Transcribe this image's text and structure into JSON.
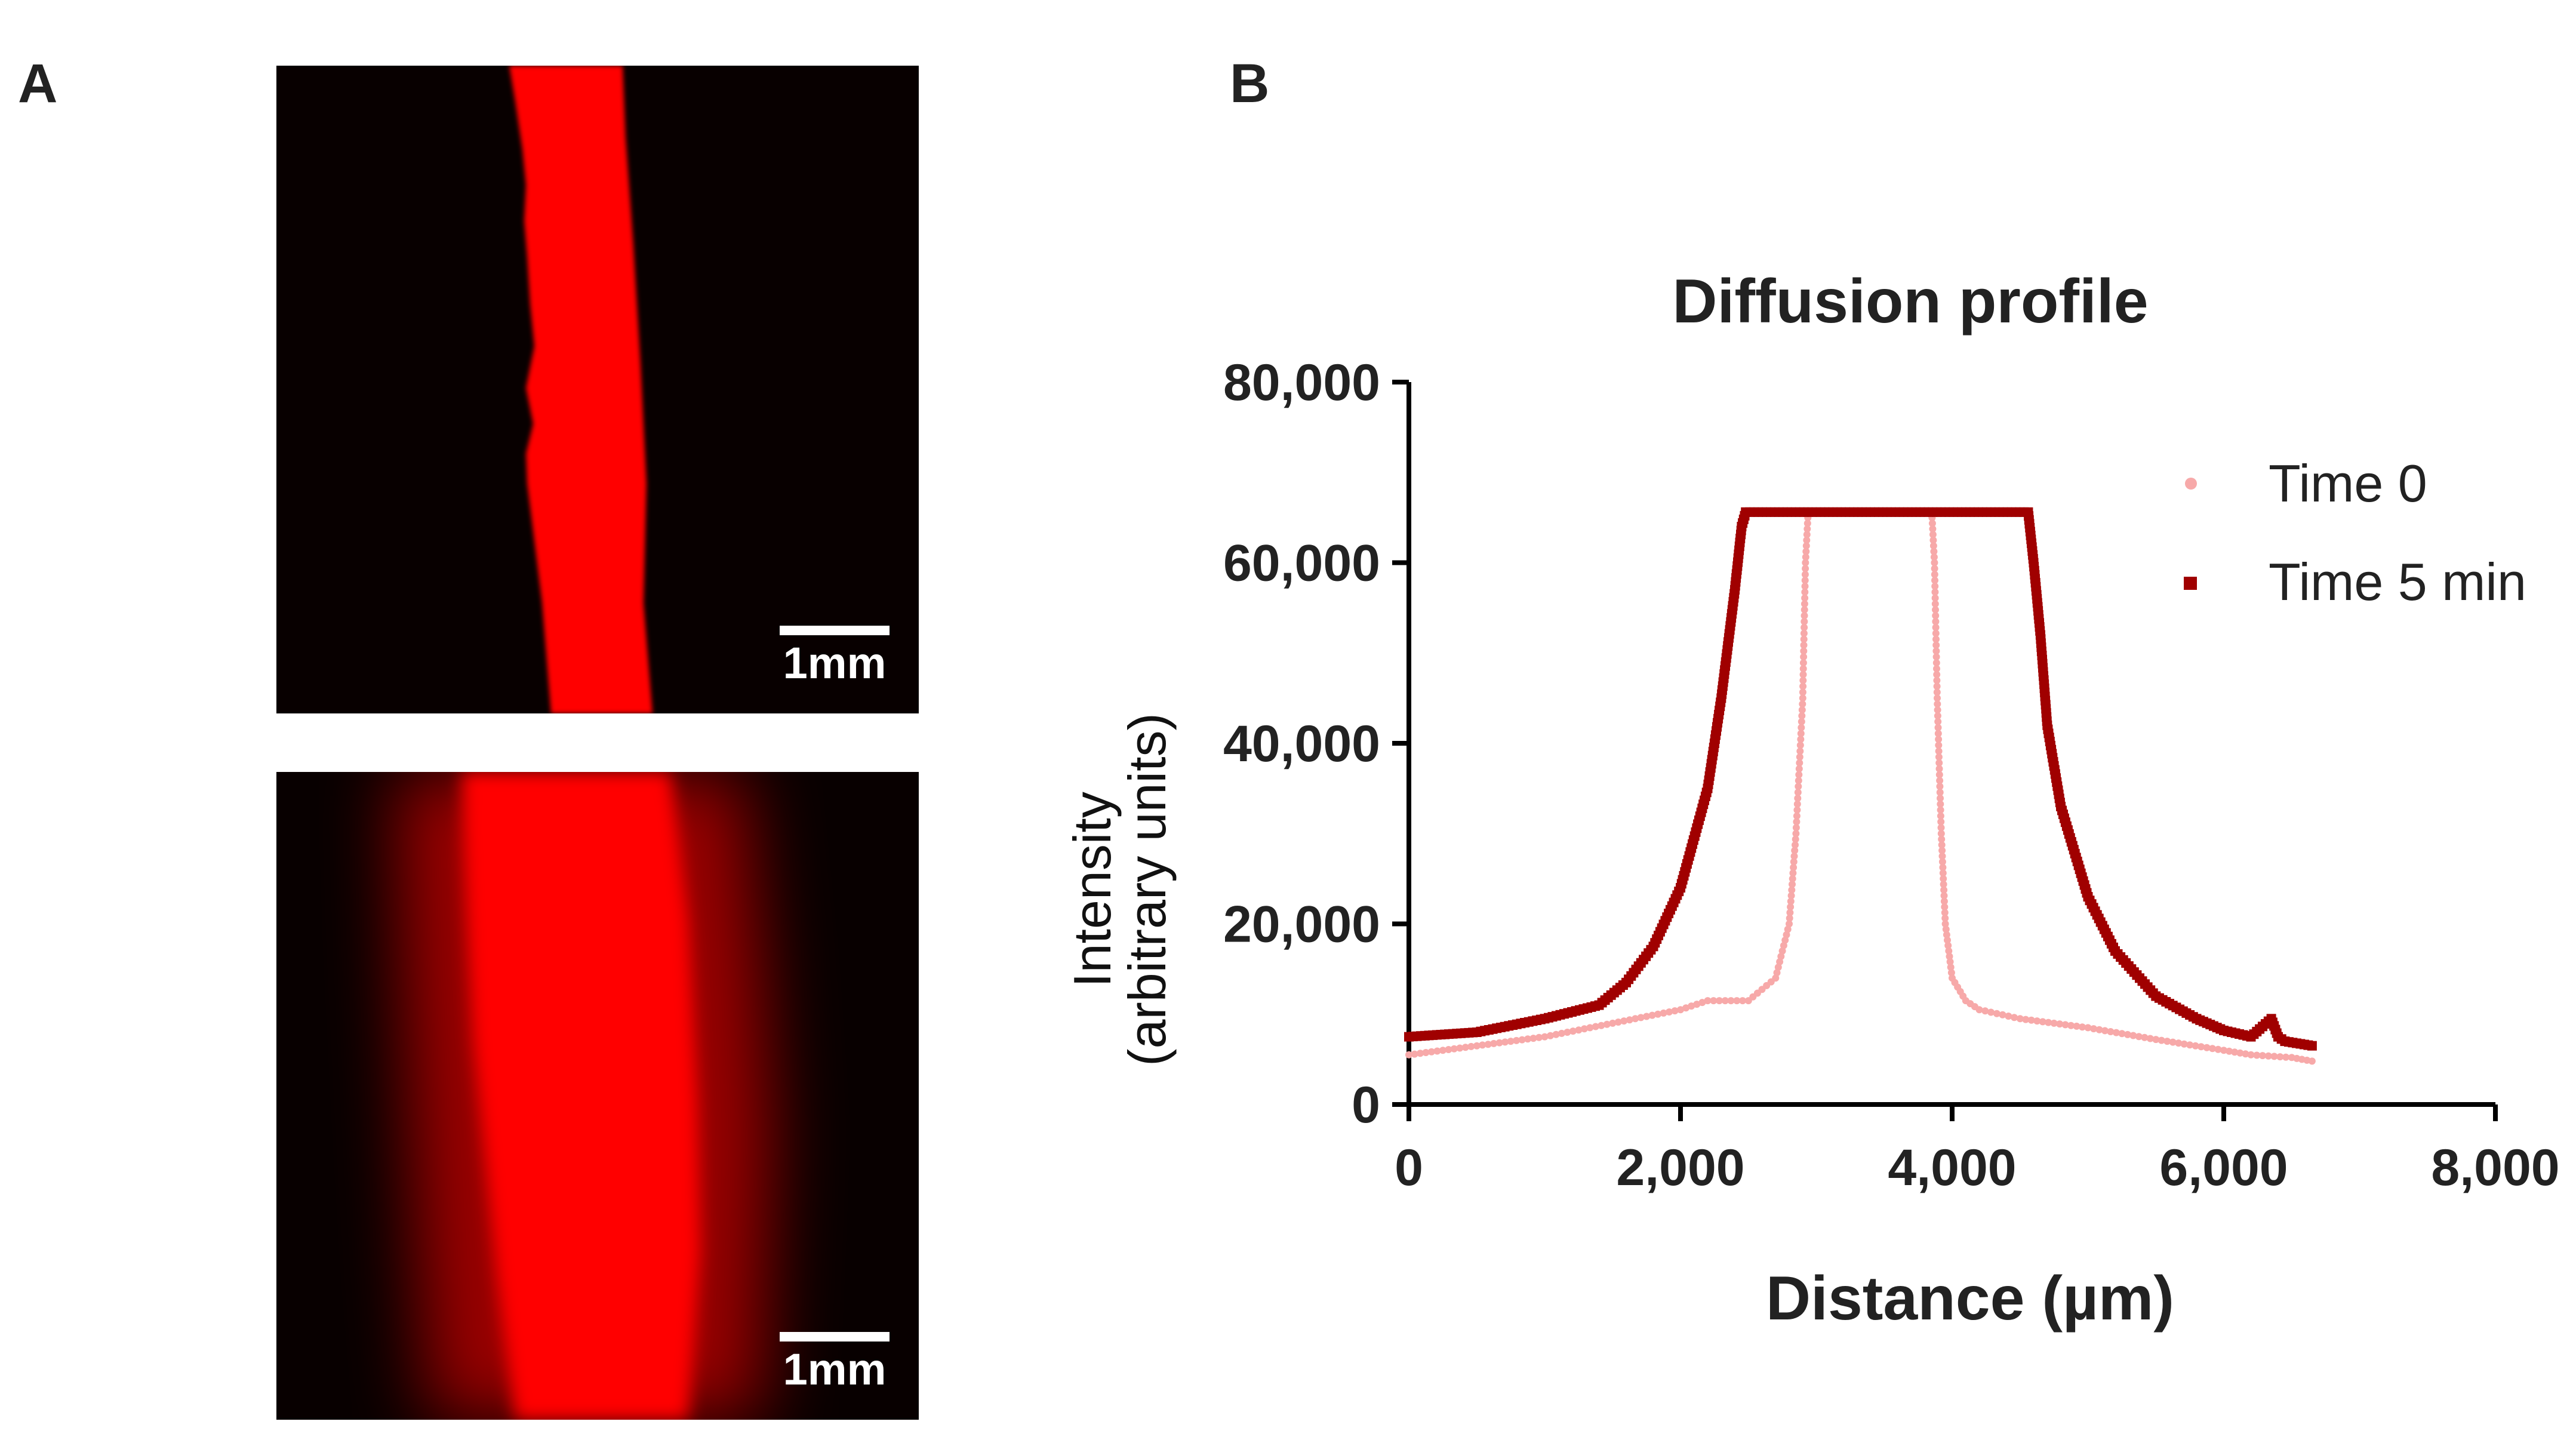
{
  "panels": {
    "a_label": "A",
    "b_label": "B"
  },
  "micrographs": {
    "top": {
      "scale_label": "1mm"
    },
    "bottom": {
      "scale_label": "1mm"
    }
  },
  "colors": {
    "channel_red": "#ff0000",
    "background_dark": "#060000",
    "time0": "#f7a9a9",
    "time5": "#a00000",
    "axis": "#000000",
    "text": "#222222"
  },
  "chart_data": {
    "type": "scatter",
    "title": "Diffusion profile",
    "xlabel": "Distance (µm)",
    "ylabel_line1": "Intensity",
    "ylabel_line2": "(arbitrary units)",
    "xlim": [
      0,
      8000
    ],
    "ylim": [
      0,
      80000
    ],
    "xticks": [
      0,
      2000,
      4000,
      6000,
      8000
    ],
    "xtick_labels": [
      "0",
      "2,000",
      "4,000",
      "6,000",
      "8,000"
    ],
    "yticks": [
      0,
      20000,
      40000,
      60000,
      80000
    ],
    "ytick_labels": [
      "0",
      "20,000",
      "40,000",
      "60,000",
      "80,000"
    ],
    "legend_position": "top-right",
    "series": [
      {
        "name": "Time 0",
        "marker": "circle",
        "x": [
          0,
          500,
          1000,
          1500,
          2000,
          2200,
          2500,
          2700,
          2800,
          2850,
          2900,
          2920,
          2940,
          3850,
          3870,
          3890,
          3920,
          3950,
          4000,
          4100,
          4200,
          4500,
          5000,
          5500,
          6000,
          6200,
          6500,
          6650
        ],
        "values": [
          5500,
          6500,
          7500,
          9000,
          10500,
          11500,
          11500,
          14000,
          20000,
          30000,
          45000,
          60000,
          65600,
          65600,
          60000,
          45000,
          30000,
          20000,
          14000,
          11500,
          10500,
          9500,
          8500,
          7200,
          6000,
          5500,
          5200,
          4800
        ]
      },
      {
        "name": "Time 5 min",
        "marker": "square",
        "x": [
          0,
          500,
          1000,
          1400,
          1600,
          1800,
          2000,
          2200,
          2300,
          2400,
          2450,
          2480,
          4560,
          4600,
          4650,
          4700,
          4800,
          5000,
          5200,
          5500,
          5800,
          6000,
          6200,
          6350,
          6400,
          6450,
          6650
        ],
        "values": [
          7500,
          8000,
          9500,
          11000,
          13500,
          17500,
          24000,
          35000,
          45000,
          57000,
          64000,
          65600,
          65600,
          60000,
          52000,
          42000,
          33000,
          23000,
          17000,
          12000,
          9500,
          8200,
          7500,
          9500,
          7500,
          7000,
          6500
        ]
      }
    ]
  }
}
